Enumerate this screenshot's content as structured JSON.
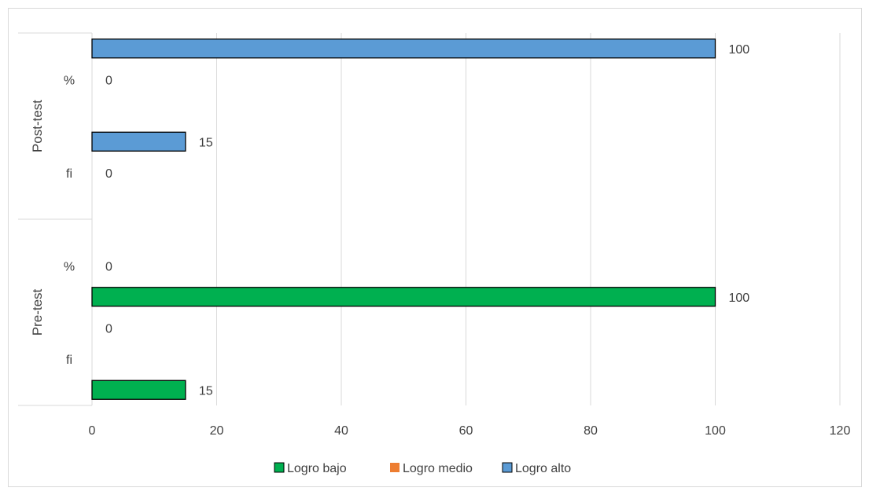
{
  "chart_data": {
    "type": "bar",
    "orientation": "horizontal",
    "groups": [
      {
        "name": "Post-test",
        "categories": [
          "%",
          "fi"
        ]
      },
      {
        "name": "Pre-test",
        "categories": [
          "%",
          "fi"
        ]
      }
    ],
    "series": [
      {
        "name": "Logro bajo",
        "color": "#00b050"
      },
      {
        "name": "Logro medio",
        "color": "#ed7d31"
      },
      {
        "name": "Logro alto",
        "color": "#5b9bd5"
      }
    ],
    "rows": [
      {
        "group": "Post-test",
        "category": "%",
        "values": {
          "Logro bajo": null,
          "Logro medio": 0,
          "Logro alto": 100
        }
      },
      {
        "group": "Post-test",
        "category": "fi",
        "values": {
          "Logro bajo": null,
          "Logro medio": 0,
          "Logro alto": 15
        }
      },
      {
        "group": "Pre-test",
        "category": "%",
        "values": {
          "Logro bajo": 100,
          "Logro medio": 0,
          "Logro alto": null
        }
      },
      {
        "group": "Pre-test",
        "category": "fi",
        "values": {
          "Logro bajo": 15,
          "Logro medio": null,
          "Logro alto": 0
        }
      }
    ],
    "xlim": [
      0,
      120
    ],
    "xticks": [
      0,
      20,
      40,
      60,
      80,
      100,
      120
    ],
    "title": "",
    "xlabel": "",
    "ylabel": "",
    "grid": "vertical",
    "legend_position": "bottom"
  }
}
